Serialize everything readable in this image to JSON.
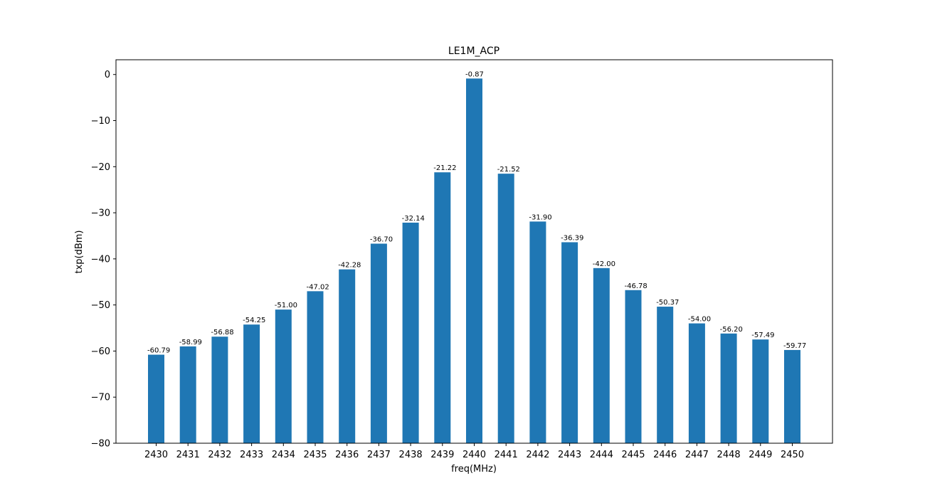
{
  "chart_data": {
    "type": "bar",
    "title": "LE1M_ACP",
    "xlabel": "freq(MHz)",
    "ylabel": "txp(dBm)",
    "categories": [
      "2430",
      "2431",
      "2432",
      "2433",
      "2434",
      "2435",
      "2436",
      "2437",
      "2438",
      "2439",
      "2440",
      "2441",
      "2442",
      "2443",
      "2444",
      "2445",
      "2446",
      "2447",
      "2448",
      "2449",
      "2450"
    ],
    "values": [
      -60.79,
      -58.99,
      -56.88,
      -54.25,
      -51.0,
      -47.02,
      -42.28,
      -36.7,
      -32.14,
      -21.22,
      -0.87,
      -21.52,
      -31.9,
      -36.39,
      -42.0,
      -46.78,
      -50.37,
      -54.0,
      -56.2,
      -57.49,
      -59.77
    ],
    "value_labels": [
      "-60.79",
      "-58.99",
      "-56.88",
      "-54.25",
      "-51.00",
      "-47.02",
      "-42.28",
      "-36.70",
      "-32.14",
      "-21.22",
      "-0.87",
      "-21.52",
      "-31.90",
      "-36.39",
      "-42.00",
      "-46.78",
      "-50.37",
      "-54.00",
      "-56.20",
      "-57.49",
      "-59.77"
    ],
    "ylim": [
      -80,
      3.2
    ],
    "yticks": [
      0,
      -10,
      -20,
      -30,
      -40,
      -50,
      -60,
      -70,
      -80
    ],
    "ytick_labels": [
      "0",
      "−10",
      "−20",
      "−30",
      "−40",
      "−50",
      "−60",
      "−70",
      "−80"
    ],
    "grid": false,
    "bar_color": "#1f77b4"
  }
}
